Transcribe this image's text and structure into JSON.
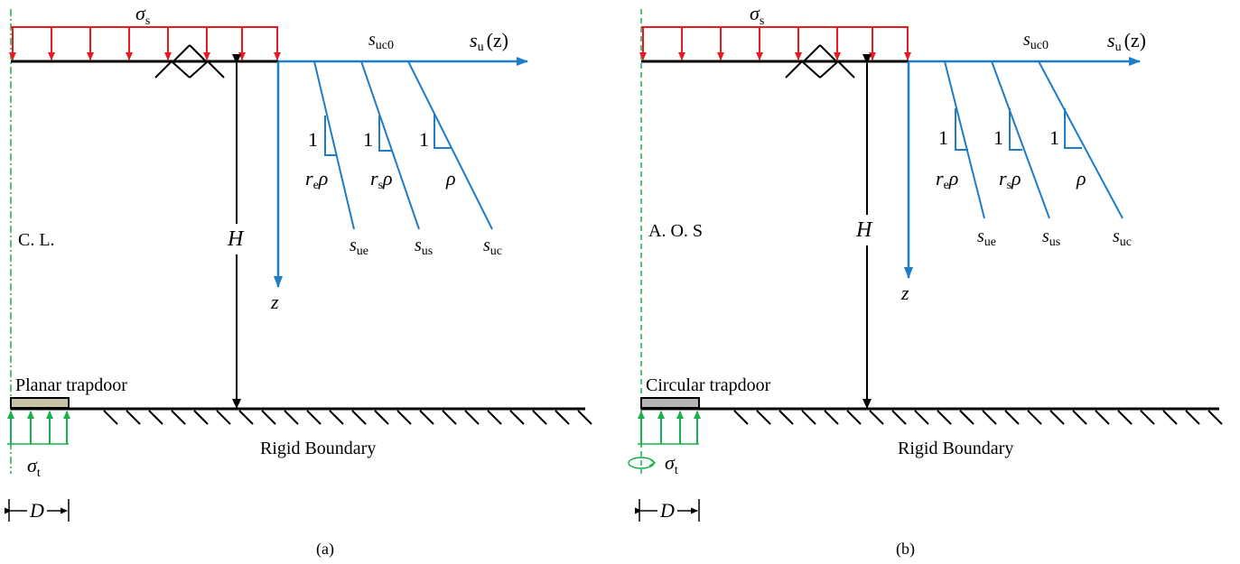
{
  "colors": {
    "surcharge": "#e8191f",
    "profile": "#1f7cc8",
    "trapdoor_support": "#18b04a",
    "axis_of_symmetry": "#18b04a",
    "structure": "#000000",
    "trapdoor_fill_a": "#c9c2a8",
    "trapdoor_fill_b": "#b5b5b5"
  },
  "panels": [
    {
      "id": "a",
      "sigma_s": "σ",
      "sigma_s_sub": "s",
      "su_axis": "s",
      "su_axis_sub": "u",
      "su_axis_arg": "(z)",
      "suc0": "s",
      "suc0_sub": "uc0",
      "z_label": "z",
      "H_label": "H",
      "symmetry_label": "C. L.",
      "trapdoor_label": "Planar trapdoor",
      "boundary_label": "Rigid Boundary",
      "sigma_t": "σ",
      "sigma_t_sub": "t",
      "D_label": "D",
      "caption": "(a)",
      "slopes": [
        {
          "one": "1",
          "rate_main": "r",
          "rate_sub": "e",
          "rho": "ρ",
          "end_label": "s",
          "end_sub": "ue"
        },
        {
          "one": "1",
          "rate_main": "r",
          "rate_sub": "s",
          "rho": "ρ",
          "end_label": "s",
          "end_sub": "us"
        },
        {
          "one": "1",
          "rate_main": "",
          "rate_sub": "",
          "rho": "ρ",
          "end_label": "s",
          "end_sub": "uc"
        }
      ]
    },
    {
      "id": "b",
      "sigma_s": "σ",
      "sigma_s_sub": "s",
      "su_axis": "s",
      "su_axis_sub": "u",
      "su_axis_arg": "(z)",
      "suc0": "s",
      "suc0_sub": "uc0",
      "z_label": "z",
      "H_label": "H",
      "symmetry_label": "A. O. S",
      "trapdoor_label": "Circular trapdoor",
      "boundary_label": "Rigid Boundary",
      "sigma_t": "σ",
      "sigma_t_sub": "t",
      "D_label": "D",
      "caption": "(b)",
      "slopes": [
        {
          "one": "1",
          "rate_main": "r",
          "rate_sub": "e",
          "rho": "ρ",
          "end_label": "s",
          "end_sub": "ue"
        },
        {
          "one": "1",
          "rate_main": "r",
          "rate_sub": "s",
          "rho": "ρ",
          "end_label": "s",
          "end_sub": "us"
        },
        {
          "one": "1",
          "rate_main": "",
          "rate_sub": "",
          "rho": "ρ",
          "end_label": "s",
          "end_sub": "uc"
        }
      ]
    }
  ]
}
